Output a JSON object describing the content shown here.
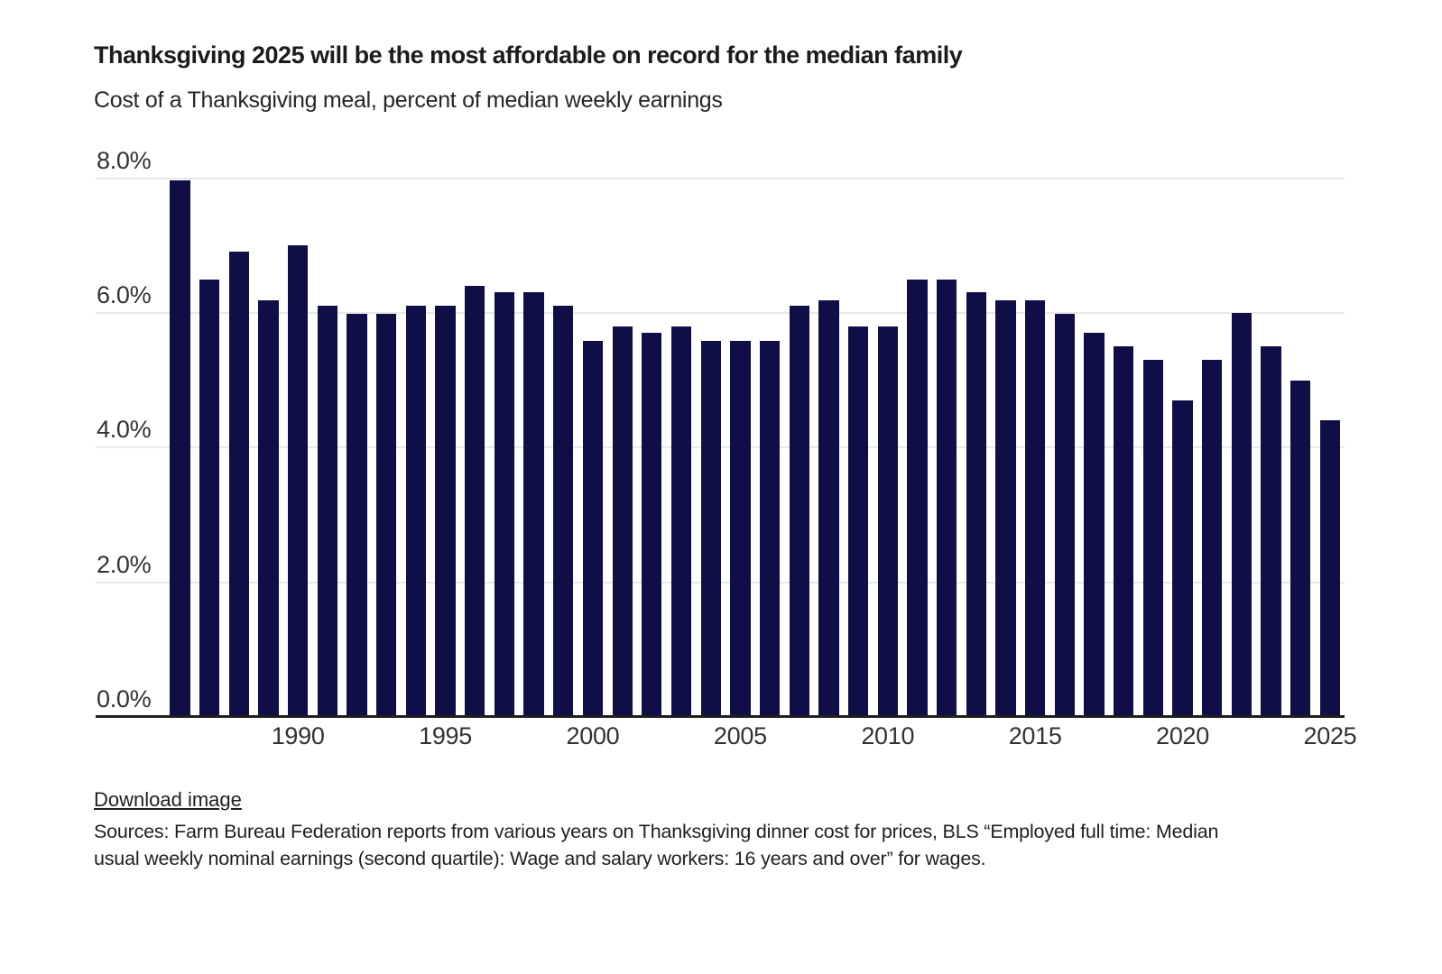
{
  "chart_data": {
    "type": "bar",
    "title": "Thanksgiving 2025 will be the most affordable on record for the median family",
    "subtitle": "Cost of a Thanksgiving meal, percent of median weekly earnings",
    "xlabel": "",
    "ylabel": "Cost of a Thanksgiving meal, percent of median weekly earnings",
    "x": [
      1986,
      1987,
      1988,
      1989,
      1990,
      1991,
      1992,
      1993,
      1994,
      1995,
      1996,
      1997,
      1998,
      1999,
      2000,
      2001,
      2002,
      2003,
      2004,
      2005,
      2006,
      2007,
      2008,
      2009,
      2010,
      2011,
      2012,
      2013,
      2014,
      2015,
      2016,
      2017,
      2018,
      2019,
      2020,
      2021,
      2022,
      2023,
      2024,
      2025
    ],
    "values": [
      7.97,
      6.5,
      6.91,
      6.19,
      7.0,
      6.1,
      5.99,
      5.99,
      6.1,
      6.1,
      6.4,
      6.31,
      6.31,
      6.1,
      5.59,
      5.8,
      5.7,
      5.8,
      5.59,
      5.59,
      5.59,
      6.1,
      6.19,
      5.8,
      5.8,
      6.5,
      6.5,
      6.31,
      6.19,
      6.19,
      5.99,
      5.7,
      5.5,
      5.3,
      4.7,
      5.3,
      6.0,
      5.5,
      4.99,
      4.4
    ],
    "ylim": [
      0,
      8
    ],
    "yticks": [
      {
        "value": 0,
        "label": "0.0%"
      },
      {
        "value": 2,
        "label": "2.0%"
      },
      {
        "value": 4,
        "label": "4.0%"
      },
      {
        "value": 6,
        "label": "6.0%"
      },
      {
        "value": 8,
        "label": "8.0%"
      }
    ],
    "xticks": [
      1990,
      1995,
      2000,
      2005,
      2010,
      2015,
      2020,
      2025
    ],
    "grid": "horizontal",
    "legend": "none",
    "bar_color": "#0f0e47",
    "gridline_color": "#e8e8e8",
    "axis_color": "#1f1f1f",
    "tick_label_color": "#323232"
  },
  "footer": {
    "download_label": "Download image",
    "sources_line1": "Sources: Farm Bureau Federation reports from various years on Thanksgiving dinner cost for prices, BLS “Employed full time: Median",
    "sources_line2": "usual weekly nominal earnings (second quartile): Wage and salary workers: 16 years and over” for wages."
  }
}
